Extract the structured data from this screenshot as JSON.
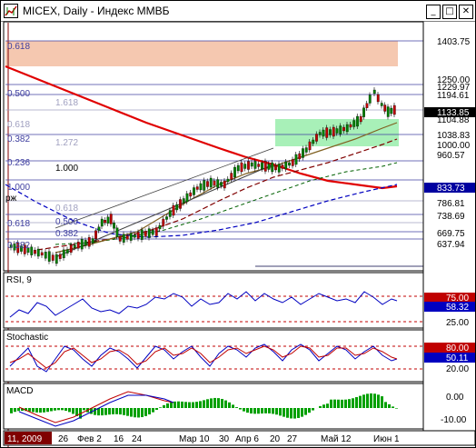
{
  "window": {
    "title": "MICEX, Daily - Индекс ММВБ",
    "minimize": "_",
    "maximize": "□",
    "close": "✕"
  },
  "main_chart": {
    "price_labels": [
      "1403.75",
      "1250.00",
      "1229.97",
      "1194.61",
      "1133.85",
      "1104.88",
      "1038.83",
      "1000.00",
      "960.57",
      "833.73",
      "786.81",
      "738.69",
      "669.75",
      "637.94"
    ],
    "fib_left_labels": [
      "0.618",
      "0.500",
      "0.618",
      "0.382",
      "0.236",
      "1.000",
      "0.618",
      "0.500",
      "0.382"
    ],
    "fib_mid_labels": [
      "1.618",
      "1.272",
      "1.000",
      "0.618",
      "0.500",
      "0.382"
    ],
    "left_text": "рж",
    "current_price": "1133.85",
    "highlight_price": "833.73"
  },
  "rsi": {
    "title": "RSI, 9",
    "levels": [
      "75.00",
      "58.32",
      "25.00"
    ]
  },
  "stochastic": {
    "title": "Stochastic",
    "levels": [
      "80.00",
      "50.11",
      "20.00"
    ]
  },
  "macd": {
    "title": "MACD",
    "levels": [
      "0.00",
      "-10.00"
    ]
  },
  "time_axis": {
    "labels": [
      "11, 2009",
      "26",
      "Фев 2",
      "16",
      "24",
      "Мар 10",
      "30",
      "Апр 6",
      "20",
      "27",
      "Май 12",
      "Июн 1"
    ]
  },
  "colors": {
    "bull": "#008000",
    "bear": "#c00000",
    "ma_red": "#e00000",
    "ma_dark": "#800000",
    "blue_line": "#0000c0",
    "fib_zone": "#f5c8b0",
    "green_zone": "#a8f0b8"
  }
}
